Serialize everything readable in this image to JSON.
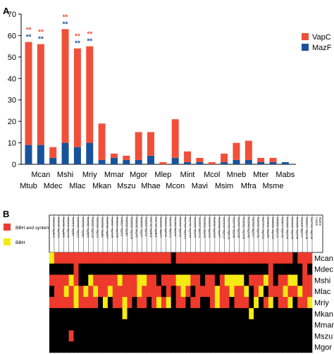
{
  "panel_a": {
    "letter": "A",
    "legend": [
      {
        "label": "VapC",
        "color": "#f0503a"
      },
      {
        "label": "MazF",
        "color": "#17539c"
      }
    ]
  },
  "chart_data": [
    {
      "type": "bar",
      "stacked": true,
      "categories": [
        "Mtub",
        "Mcan",
        "Mdec",
        "Mshi",
        "Mlac",
        "Mriy",
        "Mkan",
        "Mmar",
        "Mszu",
        "Mgor",
        "Mhae",
        "Mlep",
        "Mcon",
        "Mint",
        "Mavi",
        "Mcol",
        "Msim",
        "Mneb",
        "Mfra",
        "Mter",
        "Msme",
        "Mabs"
      ],
      "label_row": {
        "upper": [
          "Mcan",
          "Mshi",
          "Mriy",
          "Mmar",
          "Mgor",
          "Mlep",
          "Mint",
          "Mcol",
          "Mneb",
          "Mter",
          "Mabs"
        ],
        "lower": [
          "Mtub",
          "Mdec",
          "Mlac",
          "Mkan",
          "Mszu",
          "Mhae",
          "Mcon",
          "Mavi",
          "Msim",
          "Mfra",
          "Msme"
        ]
      },
      "series": [
        {
          "name": "MazF",
          "color": "#17539c",
          "values": [
            9,
            9,
            3,
            10,
            8,
            10,
            2,
            3,
            2,
            2,
            4,
            0,
            3,
            1,
            1,
            0,
            1,
            2,
            2,
            1,
            1,
            1
          ]
        },
        {
          "name": "VapC",
          "color": "#f0503a",
          "values": [
            48,
            47,
            5,
            53,
            46,
            45,
            17,
            2,
            2,
            13,
            11,
            1,
            18,
            5,
            2,
            1,
            4,
            8,
            9,
            2,
            2,
            0
          ]
        }
      ],
      "significance": [
        {
          "index": 0,
          "vapc": "**",
          "mazf": "**"
        },
        {
          "index": 1,
          "vapc": "**",
          "mazf": "**"
        },
        {
          "index": 3,
          "vapc": "**",
          "mazf": "**"
        },
        {
          "index": 4,
          "vapc": "**",
          "mazf": "**"
        },
        {
          "index": 5,
          "vapc": "**",
          "mazf": "**"
        }
      ],
      "ylim": [
        0,
        70
      ],
      "yticks": [
        0,
        10,
        20,
        30,
        40,
        50,
        60,
        70
      ],
      "xlabel": "",
      "ylabel": "",
      "grid": false,
      "legend_position": "right"
    },
    {
      "type": "heatmap",
      "panel_letter": "B",
      "legend": [
        {
          "label": "BBH and synteny",
          "color": "#ee3a2c"
        },
        {
          "label": "BBH",
          "color": "#f5ea14"
        }
      ],
      "row_labels": [
        "Mcan",
        "Mdec",
        "Mshi",
        "Mlac",
        "Mriy",
        "Mkan",
        "Mmar",
        "Mszu",
        "Mgor"
      ],
      "corner_labels": [
        "Locus",
        "Name"
      ],
      "column_labels": [
        "Rv0239 VapB24",
        "Rv0240 VapC24",
        "Rv0299 VapB20",
        "Rv0300 VapC20",
        "Rv0301 VapB3",
        "Rv0549c VapC3",
        "Rv0550c VapB3",
        "Rv0581 VapB26",
        "Rv0582 VapC26",
        "Rv0595c VapC4",
        "Rv0596c VapB4",
        "Rv0609A VapB27",
        "Rv0617 VapC29",
        "Rv0624 VapC30",
        "Rv0627 VapC5",
        "Rv0628 VapB5",
        "Rv0656c VapC35",
        "Rv0659c MazF2",
        "Rv0661c VapC7",
        "Rv0665 VapC8",
        "Rv0749 VapB31",
        "Rv0748 VapB31",
        "Rv1102c MazF3",
        "Rv1114 VapC11",
        "Rv1242 VapC12",
        "Rv1495 MazF4",
        "Rv1561 VapC11",
        "Rv1720c VapC12",
        "Rv1741 VapC34",
        "Rv1942c MazF5",
        "Rv1953 VapC14",
        "Rv1991c MazF6",
        "Rv2009 VapC15",
        "Rv2010 VapC15",
        "Rv2063A MazF7",
        "Rv2103c VapC37",
        "Rv2231A VapC16",
        "Rv2274c MazF8",
        "Rv2494 VapC38",
        "Rv2530c VapC39",
        "Rv2548 VapC40",
        "Rv2546 VapC17",
        "Rv2596 VapC40",
        "Rv2757c VapC21",
        "Rv2801c MazF9",
        "Rv2829c VapC22",
        "Rv2863 VapC23",
        "Rv2872 VapC42",
        "Rv3180c VapC43",
        "Rv3320c VapC44",
        "Rv3384c VapC46",
        "Rv3408 VapC47",
        "Rv3697c VapC48",
        "Rv3750c VapC49"
      ],
      "legend_codes": {
        "0": "absent",
        "1": "BBH and synteny",
        "2": "BBH"
      },
      "matrix": [
        [
          2,
          1,
          1,
          1,
          1,
          1,
          1,
          1,
          1,
          1,
          1,
          1,
          1,
          1,
          1,
          1,
          1,
          1,
          1,
          1,
          1,
          1,
          1,
          1,
          1,
          0,
          1,
          1,
          1,
          1,
          1,
          1,
          1,
          1,
          1,
          1,
          1,
          1,
          1,
          1,
          1,
          1,
          1,
          1,
          1,
          1,
          1,
          1,
          1,
          1,
          0,
          1,
          1,
          1
        ],
        [
          0,
          0,
          0,
          0,
          0,
          1,
          0,
          0,
          0,
          0,
          0,
          0,
          0,
          0,
          0,
          0,
          0,
          0,
          0,
          0,
          0,
          0,
          0,
          0,
          0,
          0,
          0,
          0,
          0,
          0,
          0,
          0,
          0,
          0,
          0,
          0,
          0,
          0,
          0,
          0,
          0,
          0,
          0,
          0,
          0,
          1,
          0,
          0,
          0,
          0,
          0,
          0,
          1,
          0
        ],
        [
          1,
          1,
          1,
          1,
          2,
          1,
          0,
          0,
          2,
          1,
          1,
          1,
          1,
          1,
          2,
          1,
          1,
          1,
          2,
          2,
          1,
          1,
          0,
          1,
          1,
          1,
          2,
          2,
          2,
          1,
          1,
          0,
          1,
          1,
          0,
          1,
          2,
          2,
          2,
          2,
          0,
          1,
          1,
          1,
          2,
          1,
          0,
          1,
          1,
          2,
          2,
          0,
          1,
          1
        ],
        [
          0,
          1,
          1,
          2,
          1,
          2,
          1,
          2,
          1,
          2,
          1,
          1,
          2,
          1,
          1,
          1,
          1,
          1,
          2,
          1,
          1,
          1,
          1,
          0,
          1,
          0,
          1,
          2,
          1,
          0,
          1,
          1,
          1,
          1,
          2,
          1,
          1,
          2,
          1,
          1,
          2,
          0,
          1,
          2,
          0,
          1,
          1,
          1,
          2,
          1,
          1,
          2,
          1,
          1
        ],
        [
          1,
          1,
          1,
          1,
          1,
          2,
          1,
          1,
          1,
          1,
          0,
          2,
          0,
          1,
          1,
          2,
          1,
          0,
          1,
          1,
          0,
          1,
          2,
          1,
          2,
          0,
          1,
          1,
          0,
          1,
          1,
          0,
          0,
          1,
          2,
          1,
          1,
          0,
          1,
          1,
          1,
          0,
          2,
          0,
          1,
          2,
          0,
          1,
          1,
          2,
          0,
          1,
          1,
          2
        ],
        [
          0,
          0,
          0,
          0,
          0,
          0,
          0,
          0,
          0,
          0,
          0,
          0,
          0,
          0,
          0,
          2,
          0,
          0,
          0,
          0,
          0,
          0,
          0,
          0,
          0,
          0,
          0,
          0,
          0,
          0,
          0,
          0,
          0,
          0,
          0,
          0,
          0,
          0,
          0,
          0,
          0,
          2,
          0,
          0,
          0,
          0,
          0,
          0,
          0,
          0,
          0,
          0,
          0,
          0
        ],
        [
          0,
          0,
          0,
          0,
          0,
          0,
          0,
          0,
          0,
          0,
          0,
          0,
          0,
          0,
          0,
          0,
          0,
          0,
          0,
          0,
          0,
          0,
          0,
          0,
          0,
          0,
          0,
          0,
          0,
          0,
          0,
          0,
          0,
          0,
          0,
          0,
          0,
          0,
          0,
          0,
          0,
          0,
          0,
          0,
          0,
          0,
          0,
          0,
          0,
          0,
          0,
          0,
          0,
          0
        ],
        [
          0,
          0,
          0,
          0,
          1,
          0,
          0,
          0,
          0,
          0,
          0,
          0,
          0,
          0,
          0,
          0,
          0,
          0,
          0,
          0,
          0,
          0,
          0,
          0,
          0,
          0,
          0,
          0,
          0,
          0,
          0,
          0,
          0,
          0,
          0,
          0,
          0,
          0,
          0,
          0,
          0,
          0,
          0,
          0,
          0,
          0,
          0,
          0,
          0,
          0,
          0,
          0,
          0,
          0
        ],
        [
          0,
          0,
          0,
          0,
          0,
          0,
          0,
          0,
          0,
          0,
          0,
          0,
          0,
          0,
          0,
          0,
          0,
          0,
          0,
          0,
          0,
          0,
          0,
          0,
          0,
          0,
          0,
          0,
          0,
          0,
          0,
          0,
          0,
          0,
          0,
          0,
          0,
          0,
          0,
          0,
          0,
          0,
          0,
          0,
          0,
          0,
          0,
          0,
          0,
          0,
          0,
          0,
          0,
          0
        ]
      ],
      "colors": {
        "absent": "#000000",
        "BBH and synteny": "#ee3a2c",
        "BBH": "#f5ea14"
      }
    }
  ]
}
